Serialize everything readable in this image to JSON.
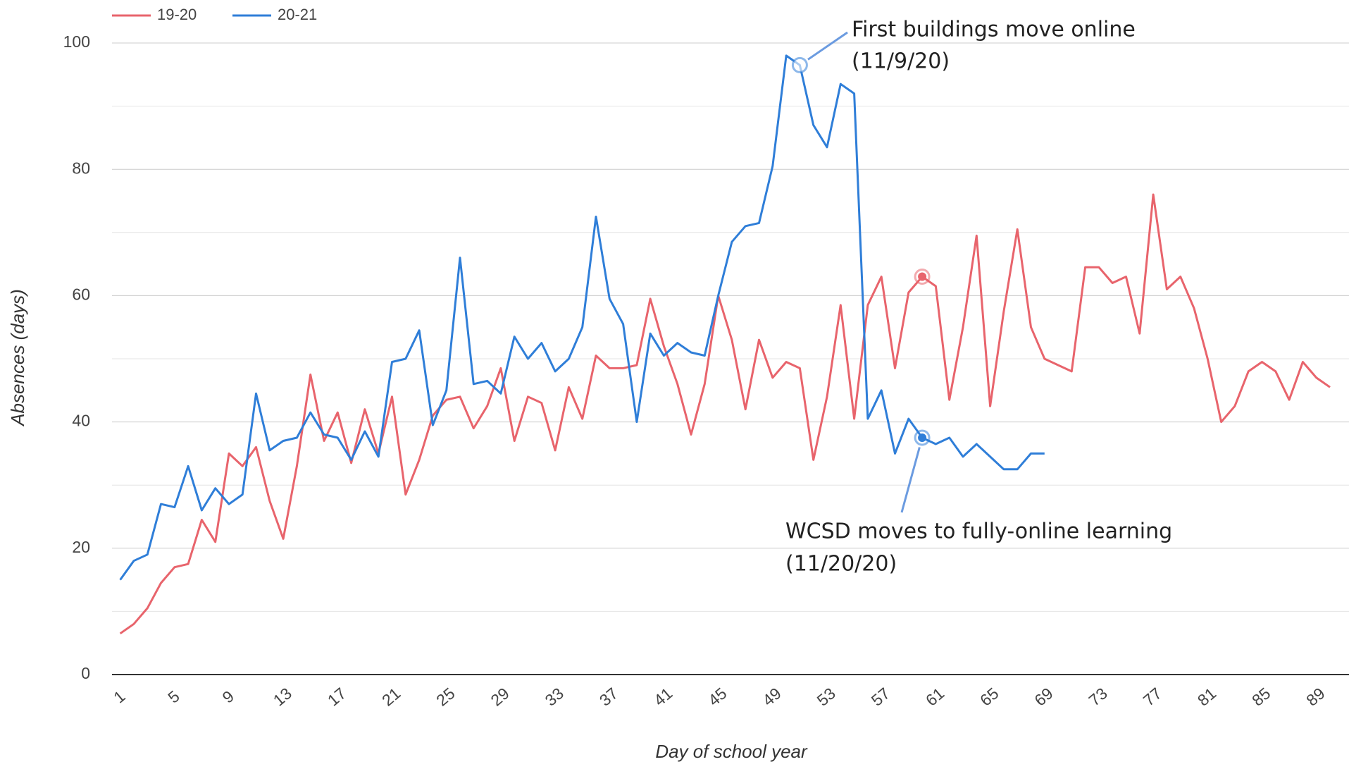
{
  "chart_data": {
    "type": "line",
    "xlabel": "Day of school year",
    "ylabel": "Absences (days)",
    "x": [
      1,
      2,
      3,
      4,
      5,
      6,
      7,
      8,
      9,
      10,
      11,
      12,
      13,
      14,
      15,
      16,
      17,
      18,
      19,
      20,
      21,
      22,
      23,
      24,
      25,
      26,
      27,
      28,
      29,
      30,
      31,
      32,
      33,
      34,
      35,
      36,
      37,
      38,
      39,
      40,
      41,
      42,
      43,
      44,
      45,
      46,
      47,
      48,
      49,
      50,
      51,
      52,
      53,
      54,
      55,
      56,
      57,
      58,
      59,
      60,
      61,
      62,
      63,
      64,
      65,
      66,
      67,
      68,
      69,
      70,
      71,
      72,
      73,
      74,
      75,
      76,
      77,
      78,
      79,
      80,
      81,
      82,
      83,
      84,
      85,
      86,
      87,
      88,
      89,
      90
    ],
    "series": [
      {
        "name": "19-20",
        "color": "#e8646c",
        "values": [
          6.5,
          8,
          10.5,
          14.5,
          17,
          17.5,
          24.5,
          21,
          35,
          33,
          36,
          27.5,
          21.5,
          33,
          47.5,
          37,
          41.5,
          33.5,
          42,
          35,
          44,
          28.5,
          34,
          41,
          43.5,
          44,
          39,
          42.5,
          48.5,
          37,
          44,
          43,
          35.5,
          45.5,
          40.5,
          50.5,
          48.5,
          48.5,
          49,
          59.5,
          52,
          46,
          38,
          46,
          60,
          53,
          42,
          53,
          47,
          49.5,
          48.5,
          34,
          44,
          58.5,
          40.5,
          58.5,
          63,
          48.5,
          60.5,
          63,
          61.5,
          43.5,
          55,
          69.5,
          42.5,
          57.5,
          70.5,
          55,
          50,
          49,
          48,
          64.5,
          64.5,
          62,
          63,
          54,
          76,
          61,
          63,
          58,
          50,
          40,
          42.5,
          48,
          49.5,
          48,
          43.5,
          49.5,
          47,
          45.5
        ]
      },
      {
        "name": "20-21",
        "color": "#2f7ed8",
        "values": [
          15,
          18,
          19,
          27,
          26.5,
          33,
          26,
          29.5,
          27,
          28.5,
          44.5,
          35.5,
          37,
          37.5,
          41.5,
          38,
          37.5,
          34,
          38.5,
          34.5,
          49.5,
          50,
          54.5,
          39.5,
          45,
          66,
          46,
          46.5,
          44.5,
          53.5,
          50,
          52.5,
          48,
          50,
          55,
          72.5,
          59.5,
          55.5,
          40,
          54,
          50.5,
          52.5,
          51,
          50.5,
          60,
          68.5,
          71,
          71.5,
          80.5,
          98,
          96.5,
          87,
          83.5,
          93.5,
          92,
          40.5,
          45,
          35,
          40.5,
          37.5,
          36.5,
          37.5,
          34.5,
          36.5,
          34.5,
          32.5,
          32.5,
          35,
          35,
          null,
          null,
          null,
          null,
          null,
          null,
          null,
          null,
          null,
          null,
          null,
          null,
          null,
          null,
          null,
          null,
          null,
          null,
          null,
          null,
          null
        ]
      }
    ],
    "xlim": [
      0.4,
      91.4
    ],
    "xticks": [
      1,
      5,
      9,
      13,
      17,
      21,
      25,
      29,
      33,
      37,
      41,
      45,
      49,
      53,
      57,
      61,
      65,
      69,
      73,
      77,
      81,
      85,
      89
    ],
    "ylim": [
      0,
      100
    ],
    "yticks": [
      0,
      20,
      40,
      60,
      80,
      100
    ],
    "minor_yticks": [
      10,
      30,
      50,
      70,
      90
    ],
    "grid": true,
    "legend": "top-left",
    "highlights": [
      {
        "series": "20-21",
        "x": 51,
        "style": "hollow"
      },
      {
        "series": "19-20",
        "x": 60,
        "style": "filled"
      },
      {
        "series": "20-21",
        "x": 60,
        "style": "filled"
      }
    ],
    "annotations": [
      {
        "lines": [
          "First buildings move online",
          "(11/9/20)"
        ],
        "series": "20-21",
        "x": 51
      },
      {
        "lines": [
          "WCSD moves to fully-online learning",
          "(11/20/20)"
        ],
        "series": "20-21",
        "x": 60
      }
    ]
  }
}
